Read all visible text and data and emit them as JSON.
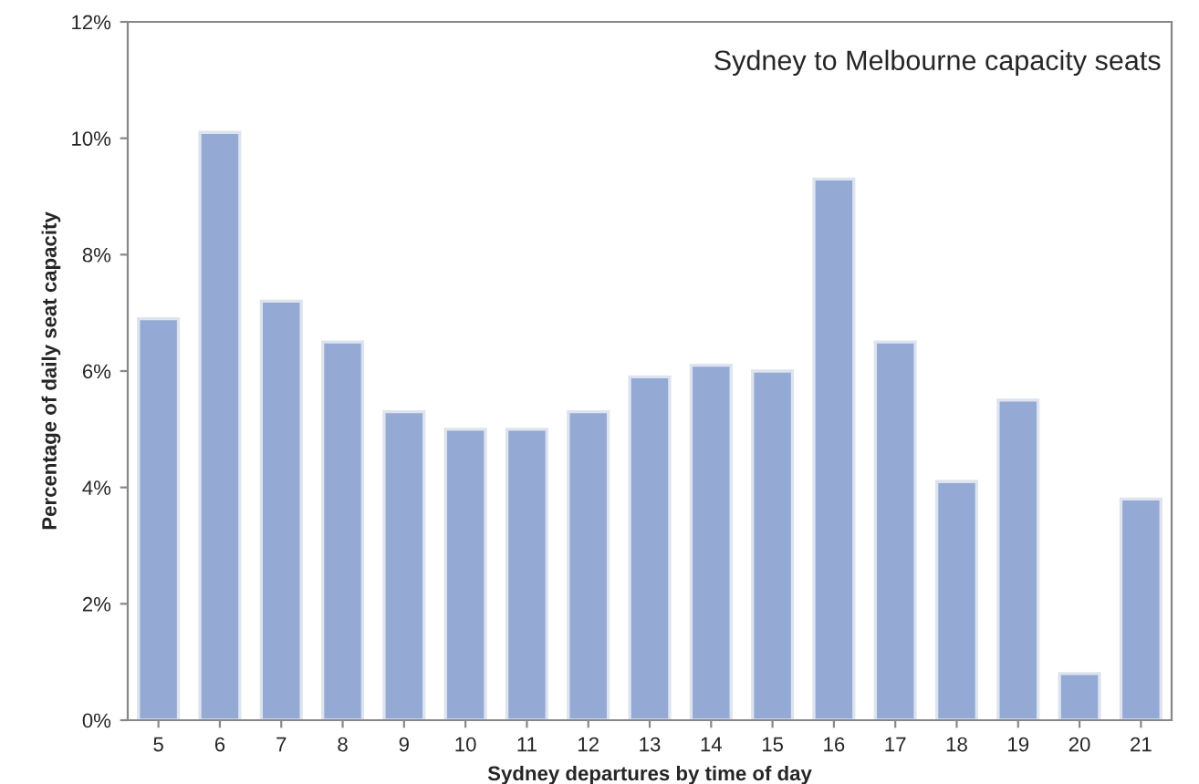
{
  "chart_data": {
    "type": "bar",
    "xlabel": "Sydney departures by time of day",
    "ylabel": "Percentage of daily seat capacity",
    "annotations": [
      "Sydney to Melbourne capacity seats"
    ],
    "categories": [
      "5",
      "6",
      "7",
      "8",
      "9",
      "10",
      "11",
      "12",
      "13",
      "14",
      "15",
      "16",
      "17",
      "18",
      "19",
      "20",
      "21"
    ],
    "values": [
      6.9,
      10.1,
      7.2,
      6.5,
      5.3,
      5.0,
      5.0,
      5.3,
      5.9,
      6.1,
      6.0,
      9.3,
      6.5,
      4.1,
      5.5,
      0.8,
      3.8
    ],
    "color": "#94a9d3",
    "ylim": [
      0,
      12
    ],
    "yticks": [
      {
        "value": 0,
        "label": "0%"
      },
      {
        "value": 2,
        "label": "2%"
      },
      {
        "value": 4,
        "label": "4%"
      },
      {
        "value": 6,
        "label": "6%"
      },
      {
        "value": 8,
        "label": "8%"
      },
      {
        "value": 10,
        "label": "10%"
      },
      {
        "value": 12,
        "label": "12%"
      }
    ],
    "grid": false,
    "legend": false
  }
}
